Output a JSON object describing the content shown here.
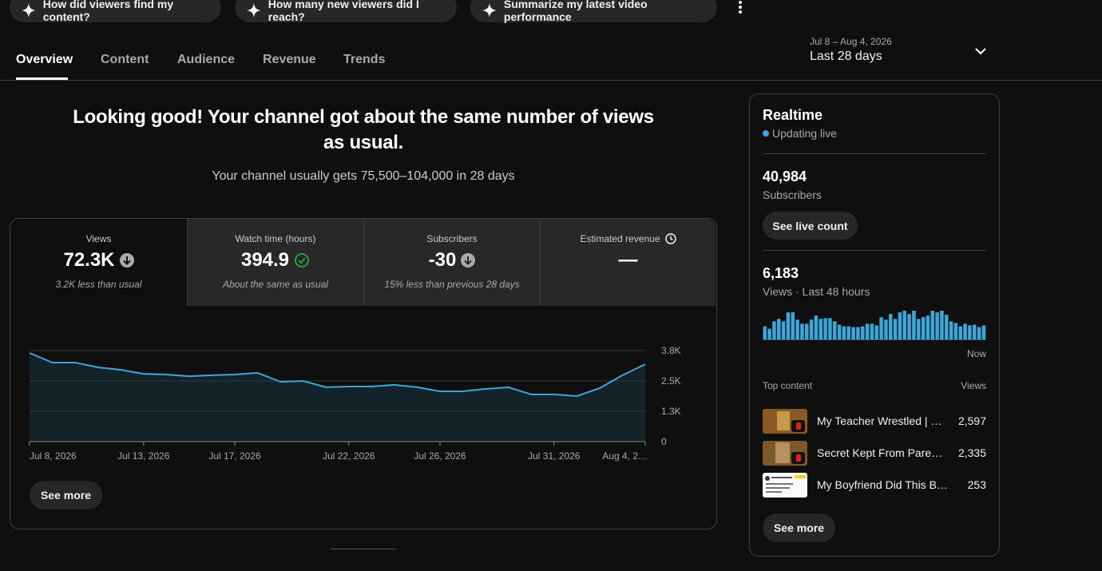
{
  "suggestions": [
    "How did viewers find my content?",
    "How many new viewers did I reach?",
    "Summarize my latest video performance"
  ],
  "tabs": [
    "Overview",
    "Content",
    "Audience",
    "Revenue",
    "Trends"
  ],
  "date_range": {
    "dates": "Jul 8 – Aug 4, 2026",
    "label": "Last 28 days"
  },
  "headline": "Looking good! Your channel got about the same number of views as usual.",
  "subheadline": "Your channel usually gets 75,500–104,000 in 28 days",
  "metrics": [
    {
      "label": "Views",
      "value": "72.3K",
      "note": "3.2K less than usual"
    },
    {
      "label": "Watch time (hours)",
      "value": "394.9",
      "note": "About the same as usual"
    },
    {
      "label": "Subscribers",
      "value": "-30",
      "note": "15% less than previous 28 days"
    },
    {
      "label": "Estimated revenue",
      "value": "—"
    }
  ],
  "see_more": "See more",
  "chart_data": [
    {
      "type": "line",
      "categories": [
        "Jul 8, 2026",
        null,
        null,
        null,
        null,
        "Jul 13, 2026",
        null,
        null,
        null,
        "Jul 17, 2026",
        null,
        null,
        null,
        null,
        "Jul 22, 2026",
        null,
        null,
        null,
        "Jul 26, 2026",
        null,
        null,
        null,
        null,
        "Jul 31, 2026",
        null,
        null,
        null,
        "Aug 4, 2…"
      ],
      "series": [
        {
          "name": "Views",
          "color": "#3ea6d9",
          "values": [
            3700,
            3300,
            3300,
            3100,
            3000,
            2830,
            2800,
            2730,
            2770,
            2800,
            2870,
            2500,
            2530,
            2270,
            2300,
            2300,
            2370,
            2270,
            2100,
            2100,
            2200,
            2270,
            1970,
            1970,
            1900,
            2230,
            2770,
            3230
          ]
        }
      ],
      "ylim": [
        0,
        3800
      ],
      "yticks": [
        {
          "value": 0,
          "label": "0"
        },
        {
          "value": 1267,
          "label": "1.3K"
        },
        {
          "value": 2533,
          "label": "2.5K"
        },
        {
          "value": 3800,
          "label": "3.8K"
        }
      ],
      "grid": true
    },
    {
      "type": "bar",
      "color": "#3ea6d9",
      "values": [
        86,
        70,
        119,
        135,
        119,
        178,
        178,
        130,
        103,
        103,
        130,
        157,
        135,
        140,
        140,
        119,
        97,
        86,
        86,
        81,
        81,
        86,
        103,
        103,
        92,
        146,
        130,
        167,
        135,
        178,
        189,
        167,
        189,
        135,
        146,
        157,
        189,
        178,
        189,
        162,
        119,
        108,
        86,
        103,
        92,
        97,
        81,
        92
      ]
    }
  ],
  "realtime": {
    "title": "Realtime",
    "status": "Updating live",
    "subscribers": "40,984",
    "subscribers_label": "Subscribers",
    "live_count_button": "See live count",
    "views": "6,183",
    "views_label": "Views · Last 48 hours",
    "now_label": "Now",
    "top_content_label": "Top content",
    "views_column": "Views",
    "top_content": [
      {
        "title": "My Teacher Wrestled | …",
        "views": "2,597"
      },
      {
        "title": "Secret Kept From Pare…",
        "views": "2,335"
      },
      {
        "title": "My Boyfriend Did This B…",
        "views": "253"
      }
    ],
    "see_more": "See more"
  }
}
